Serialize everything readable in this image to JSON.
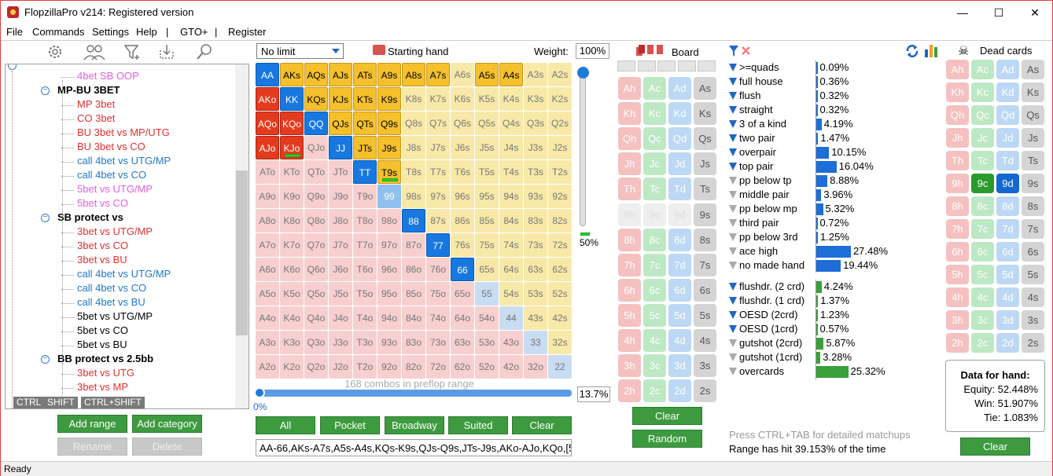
{
  "window": {
    "title": "FlopzillaPro v214: Registered version",
    "minimize": "—",
    "maximize": "☐",
    "close": "✕"
  },
  "menu": [
    "File",
    "Commands",
    "Settings",
    "Help",
    "|",
    "GTO+",
    "|",
    "Register"
  ],
  "tree": {
    "nodes": [
      {
        "text": "4bet SB OOP",
        "color": "#e060e0",
        "bold": false,
        "level": 2
      },
      {
        "text": "MP-BU 3BET",
        "color": "#000000",
        "bold": true,
        "level": 1
      },
      {
        "text": "MP 3bet",
        "color": "#e03030",
        "bold": false,
        "level": 2
      },
      {
        "text": "CO 3bet",
        "color": "#e03030",
        "bold": false,
        "level": 2
      },
      {
        "text": "BU 3bet vs MP/UTG",
        "color": "#e03030",
        "bold": false,
        "level": 2
      },
      {
        "text": "BU 3bet vs CO",
        "color": "#e03030",
        "bold": false,
        "level": 2
      },
      {
        "text": "call 4bet vs UTG/MP",
        "color": "#1e78c8",
        "bold": false,
        "level": 2
      },
      {
        "text": "call 4bet vs CO",
        "color": "#1e78c8",
        "bold": false,
        "level": 2
      },
      {
        "text": "5bet vs UTG/MP",
        "color": "#e060e0",
        "bold": false,
        "level": 2
      },
      {
        "text": "5bet vs CO",
        "color": "#e060e0",
        "bold": false,
        "level": 2
      },
      {
        "text": "SB protect vs",
        "color": "#000000",
        "bold": true,
        "level": 1
      },
      {
        "text": "3bet vs UTG/MP",
        "color": "#e03030",
        "bold": false,
        "level": 2
      },
      {
        "text": "3bet vs CO",
        "color": "#e03030",
        "bold": false,
        "level": 2
      },
      {
        "text": "3bet vs BU",
        "color": "#e03030",
        "bold": false,
        "level": 2
      },
      {
        "text": "call 4bet vs UTG/MP",
        "color": "#1e78c8",
        "bold": false,
        "level": 2
      },
      {
        "text": "call 4bet vs CO",
        "color": "#1e78c8",
        "bold": false,
        "level": 2
      },
      {
        "text": "call 4bet vs BU",
        "color": "#1e78c8",
        "bold": false,
        "level": 2
      },
      {
        "text": "5bet vs UTG/MP",
        "color": "#000000",
        "bold": false,
        "level": 2
      },
      {
        "text": "5bet vs CO",
        "color": "#000000",
        "bold": false,
        "level": 2
      },
      {
        "text": "5bet vs BU",
        "color": "#000000",
        "bold": false,
        "level": 2
      },
      {
        "text": "BB protect vs 2.5bb",
        "color": "#000000",
        "bold": true,
        "level": 1
      },
      {
        "text": "3bet vs UTG",
        "color": "#e03030",
        "bold": false,
        "level": 2
      },
      {
        "text": "3bet vs MP",
        "color": "#e03030",
        "bold": false,
        "level": 2
      }
    ],
    "modifiers": [
      "CTRL",
      "SHIFT",
      "CTRL+SHIFT"
    ],
    "toolbar_icons": [
      "gear-icon",
      "users-icon",
      "filter-add-icon",
      "import-icon",
      "search-icon"
    ]
  },
  "tree_buttons": {
    "add_range": "Add range",
    "add_category": "Add category",
    "rename": "Rename",
    "delete": "Delete"
  },
  "range": {
    "limit": "No limit",
    "starting_hand_label": "Starting hand",
    "weight_label": "Weight:",
    "weight_value": "100%",
    "weight_slider_pct": "50%",
    "combos_text": "168 combos in preflop range",
    "slider_min": "0%",
    "slider_value": "13.7%",
    "range_string": "AA-66,AKs-A7s,A5s-A4s,KQs-K9s,QJs-Q9s,JTs-J9s,AKo-AJo,KQo,[5",
    "buttons": {
      "all": "All",
      "pocket": "Pocket",
      "broadway": "Broadway",
      "suited": "Suited",
      "clear": "Clear"
    }
  },
  "grid_ranks": [
    "A",
    "K",
    "Q",
    "J",
    "T",
    "9",
    "8",
    "7",
    "6",
    "5",
    "4",
    "3",
    "2"
  ],
  "grid_red": [
    "AKo",
    "KQo",
    "AJo",
    "KJo",
    "AQo"
  ],
  "grid_gold": [
    "AKs",
    "AQs",
    "AJs",
    "ATs",
    "A9s",
    "A8s",
    "A7s",
    "A5s",
    "A4s",
    "KQs",
    "KJs",
    "KTs",
    "K9s",
    "QJs",
    "QTs",
    "Q9s",
    "JTs",
    "J9s",
    "T9s"
  ],
  "grid_blue": [
    "AA",
    "KK",
    "QQ",
    "JJ",
    "TT",
    "88",
    "77",
    "66"
  ],
  "grid_mblue": [
    "99"
  ],
  "grid_lblue": [
    "55",
    "44",
    "33",
    "22"
  ],
  "grid_bars": [
    "KJo",
    "T9s"
  ],
  "board": {
    "label": "Board",
    "slots": 5,
    "clear": "Clear",
    "random": "Random",
    "dim": [
      "9h",
      "9c",
      "9d"
    ]
  },
  "stats": {
    "made_hands": [
      {
        "label": ">=quads",
        "value": "0.09%",
        "pct": 0.09,
        "blue": true
      },
      {
        "label": "full house",
        "value": "0.36%",
        "pct": 0.36,
        "blue": true
      },
      {
        "label": "flush",
        "value": "0.32%",
        "pct": 0.32,
        "blue": true
      },
      {
        "label": "straight",
        "value": "0.32%",
        "pct": 0.32,
        "blue": true
      },
      {
        "label": "3 of a kind",
        "value": "4.19%",
        "pct": 4.19,
        "blue": true
      },
      {
        "label": "two pair",
        "value": "1.47%",
        "pct": 1.47,
        "blue": true
      },
      {
        "label": "overpair",
        "value": "10.15%",
        "pct": 10.15,
        "blue": true
      },
      {
        "label": "top pair",
        "value": "16.04%",
        "pct": 16.04,
        "blue": true
      },
      {
        "label": "pp below tp",
        "value": "8.88%",
        "pct": 8.88,
        "blue": false
      },
      {
        "label": "middle pair",
        "value": "3.96%",
        "pct": 3.96,
        "blue": false
      },
      {
        "label": "pp below mp",
        "value": "5.32%",
        "pct": 5.32,
        "blue": false
      },
      {
        "label": "third pair",
        "value": "0.72%",
        "pct": 0.72,
        "blue": false
      },
      {
        "label": "pp below 3rd",
        "value": "1.25%",
        "pct": 1.25,
        "blue": false
      },
      {
        "label": "ace high",
        "value": "27.48%",
        "pct": 27.48,
        "blue": false
      },
      {
        "label": "no made hand",
        "value": "19.44%",
        "pct": 19.44,
        "blue": false
      }
    ],
    "draws": [
      {
        "label": "flushdr. (2 crd)",
        "value": "4.24%",
        "pct": 4.24,
        "blue": true
      },
      {
        "label": "flushdr. (1 crd)",
        "value": "1.37%",
        "pct": 1.37,
        "blue": true
      },
      {
        "label": "OESD (2crd)",
        "value": "1.23%",
        "pct": 1.23,
        "blue": true
      },
      {
        "label": "OESD (1crd)",
        "value": "0.57%",
        "pct": 0.57,
        "blue": true
      },
      {
        "label": "gutshot (2crd)",
        "value": "5.87%",
        "pct": 5.87,
        "blue": false
      },
      {
        "label": "gutshot (1crd)",
        "value": "3.28%",
        "pct": 3.28,
        "blue": false
      },
      {
        "label": "overcards",
        "value": "25.32%",
        "pct": 25.32,
        "blue": false
      }
    ],
    "ctrl_tab": "Press CTRL+TAB for detailed matchups",
    "range_hit": "Range has hit 39.153% of the time"
  },
  "dead": {
    "label": "Dead cards",
    "selected": [
      "9c",
      "9d"
    ],
    "data_title": "Data for hand:",
    "equity": "Equity: 52.448%",
    "win": "Win: 51.907%",
    "tie": "Tie: 1.083%",
    "clear": "Clear"
  },
  "status": "Ready"
}
